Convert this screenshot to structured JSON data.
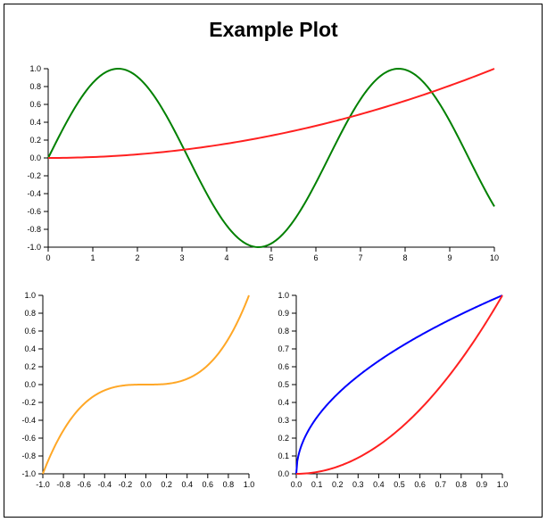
{
  "title": "Example Plot",
  "colors": {
    "green": "#008000",
    "red": "#ff2020",
    "orange": "#ffa726",
    "blue": "#0000ff",
    "axis": "#000000"
  },
  "chart_data": [
    {
      "type": "line",
      "xlim": [
        0,
        10
      ],
      "ylim": [
        -1.0,
        1.0
      ],
      "xticks": [
        "0",
        "1",
        "2",
        "3",
        "4",
        "5",
        "6",
        "7",
        "8",
        "9",
        "10"
      ],
      "yticks": [
        "-1.0",
        "-0.8",
        "-0.6",
        "-0.4",
        "-0.2",
        "0.0",
        "0.2",
        "0.4",
        "0.6",
        "0.8",
        "1.0"
      ],
      "series": [
        {
          "color": "#008000",
          "x": [
            0,
            0.5,
            1,
            1.5,
            2,
            2.5,
            3,
            3.5,
            4,
            4.5,
            5,
            5.5,
            6,
            6.5,
            7,
            7.5,
            8,
            8.5,
            9,
            9.5,
            10
          ],
          "y": [
            0,
            0.479,
            0.841,
            0.997,
            0.909,
            0.598,
            0.141,
            -0.351,
            -0.757,
            -0.978,
            -0.959,
            -0.706,
            -0.279,
            0.215,
            0.657,
            0.938,
            0.989,
            0.798,
            0.412,
            -0.075,
            -0.544
          ]
        },
        {
          "color": "#ff2020",
          "x": [
            0,
            1,
            2,
            3,
            4,
            5,
            6,
            7,
            8,
            9,
            10
          ],
          "y": [
            0,
            0.01,
            0.04,
            0.09,
            0.16,
            0.25,
            0.36,
            0.49,
            0.64,
            0.81,
            1.0
          ]
        }
      ]
    },
    {
      "type": "line",
      "xlim": [
        -1.0,
        1.0
      ],
      "ylim": [
        -1.0,
        1.0
      ],
      "xticks": [
        "-1.0",
        "-0.8",
        "-0.6",
        "-0.4",
        "-0.2",
        "0.0",
        "0.2",
        "0.4",
        "0.6",
        "0.8",
        "1.0"
      ],
      "yticks": [
        "-1.0",
        "-0.8",
        "-0.6",
        "-0.4",
        "-0.2",
        "0.0",
        "0.2",
        "0.4",
        "0.6",
        "0.8",
        "1.0"
      ],
      "series": [
        {
          "color": "#ffa726",
          "x": [
            -1,
            -0.9,
            -0.8,
            -0.7,
            -0.6,
            -0.5,
            -0.4,
            -0.3,
            -0.2,
            -0.1,
            0,
            0.1,
            0.2,
            0.3,
            0.4,
            0.5,
            0.6,
            0.7,
            0.8,
            0.9,
            1
          ],
          "y": [
            -1,
            -0.729,
            -0.512,
            -0.343,
            -0.216,
            -0.125,
            -0.064,
            -0.027,
            -0.008,
            -0.001,
            0,
            0.001,
            0.008,
            0.027,
            0.064,
            0.125,
            0.216,
            0.343,
            0.512,
            0.729,
            1
          ]
        }
      ]
    },
    {
      "type": "line",
      "xlim": [
        0.0,
        1.0
      ],
      "ylim": [
        0.0,
        1.0
      ],
      "xticks": [
        "0.0",
        "0.1",
        "0.2",
        "0.3",
        "0.4",
        "0.5",
        "0.6",
        "0.7",
        "0.8",
        "0.9",
        "1.0"
      ],
      "yticks": [
        "0.0",
        "0.1",
        "0.2",
        "0.3",
        "0.4",
        "0.5",
        "0.6",
        "0.7",
        "0.8",
        "0.9",
        "1.0"
      ],
      "series": [
        {
          "color": "#0000ff",
          "x": [
            0,
            0.005,
            0.02,
            0.05,
            0.1,
            0.2,
            0.3,
            0.4,
            0.5,
            0.6,
            0.7,
            0.8,
            0.9,
            1
          ],
          "y": [
            0,
            0.071,
            0.141,
            0.224,
            0.316,
            0.447,
            0.548,
            0.632,
            0.707,
            0.775,
            0.837,
            0.894,
            0.949,
            1
          ]
        },
        {
          "color": "#ff2020",
          "x": [
            0,
            0.1,
            0.2,
            0.3,
            0.4,
            0.5,
            0.6,
            0.7,
            0.8,
            0.9,
            1
          ],
          "y": [
            0,
            0.01,
            0.04,
            0.09,
            0.16,
            0.25,
            0.36,
            0.49,
            0.64,
            0.81,
            1.0
          ]
        }
      ]
    }
  ]
}
